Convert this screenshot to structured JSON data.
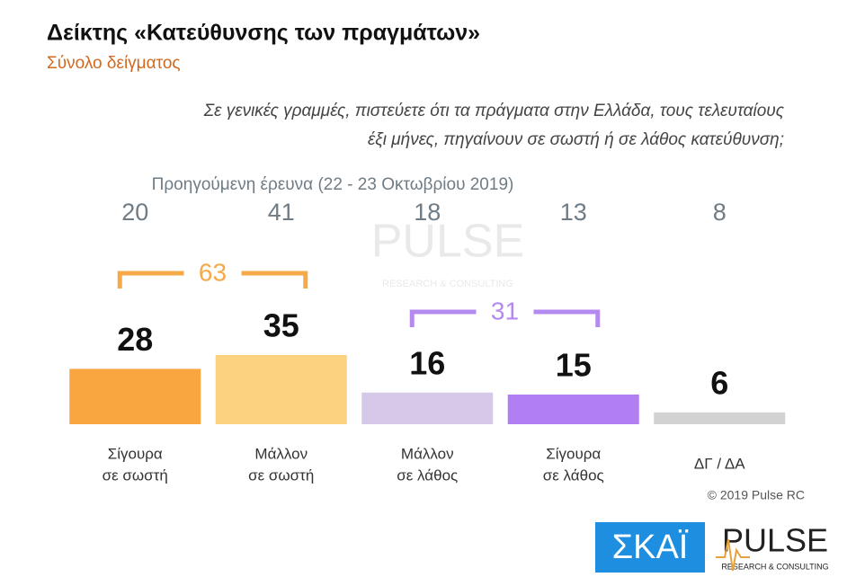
{
  "chart_data": {
    "type": "bar",
    "title": "Δείκτης «Κατεύθυνσης των πραγμάτων»",
    "subtitle": "Σύνολο δείγματος",
    "question": [
      "Σε γενικές γραμμές, πιστεύετε ότι τα πράγματα στην Ελλάδα, τους τελευταίους",
      "έξι μήνες, πηγαίνουν σε σωστή ή σε λάθος κατεύθυνση;"
    ],
    "categories": [
      [
        "Σίγουρα",
        "σε σωστή"
      ],
      [
        "Μάλλον",
        "σε σωστή"
      ],
      [
        "Μάλλον",
        "σε λάθος"
      ],
      [
        "Σίγουρα",
        "σε λάθος"
      ],
      [
        "ΔΓ / ΔΑ"
      ]
    ],
    "values": [
      28,
      35,
      16,
      15,
      6
    ],
    "colors": [
      "#f9a640",
      "#fcd17f",
      "#d5c8e9",
      "#b17ff2",
      "#d2d2d2"
    ],
    "previous": {
      "label": "Προηγούμενη έρευνα  (22 - 23  Οκτωβρίου  2019)",
      "values": [
        20,
        41,
        18,
        13,
        8
      ]
    },
    "groups": [
      {
        "value": 63,
        "color": "#f5a948",
        "from": 0,
        "to": 1
      },
      {
        "value": 31,
        "color": "#b48af0",
        "from": 2,
        "to": 3
      }
    ],
    "copyright": "© 2019 Pulse RC",
    "logos": {
      "skai": "ΣΚΑΪ",
      "pulse": "PULSE",
      "pulse_sub": "RESEARCH & CONSULTING"
    }
  }
}
